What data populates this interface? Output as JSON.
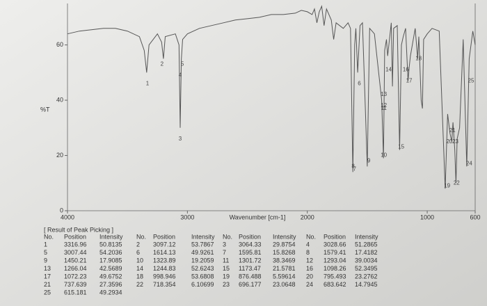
{
  "chart_data": {
    "type": "line",
    "xlabel": "Wavenumber [cm-1]",
    "ylabel": "%T",
    "xlim": [
      4000,
      600
    ],
    "ylim": [
      0,
      75
    ],
    "xticks": [
      4000,
      3000,
      2000,
      1000,
      600
    ],
    "yticks": [
      0,
      20,
      40,
      60
    ],
    "color": "#555555",
    "x": [
      4000,
      3900,
      3800,
      3700,
      3600,
      3500,
      3400,
      3360,
      3340,
      3320,
      3250,
      3215,
      3200,
      3185,
      3100,
      3070,
      3060,
      3050,
      3040,
      3000,
      2900,
      2800,
      2700,
      2600,
      2500,
      2400,
      2300,
      2200,
      2100,
      2050,
      2000,
      1960,
      1940,
      1920,
      1900,
      1880,
      1860,
      1840,
      1800,
      1780,
      1760,
      1700,
      1660,
      1640,
      1620,
      1605,
      1595,
      1580,
      1560,
      1540,
      1500,
      1480,
      1460,
      1440,
      1380,
      1365,
      1355,
      1340,
      1330,
      1315,
      1300,
      1290,
      1280,
      1250,
      1230,
      1215,
      1200,
      1180,
      1160,
      1150,
      1140,
      1100,
      1080,
      1070,
      1050,
      1040,
      1030,
      1000,
      960,
      900,
      850,
      830,
      810,
      795,
      785,
      770,
      760,
      750,
      730,
      700,
      670,
      650,
      620,
      600
    ],
    "values": [
      64,
      65,
      65.5,
      66,
      66,
      65,
      63,
      58,
      50,
      60,
      64,
      61,
      55,
      63,
      64,
      60,
      30,
      55,
      62,
      64,
      66,
      67,
      68,
      69,
      69.5,
      70,
      71,
      71,
      71.5,
      72.5,
      72,
      71,
      73,
      68,
      72,
      74,
      67,
      73,
      69,
      62,
      68,
      66,
      68,
      66,
      14,
      60,
      66,
      50,
      67,
      68,
      16,
      66,
      65,
      64,
      40,
      19,
      58,
      62,
      56,
      62,
      68,
      45,
      66,
      67,
      22,
      60,
      63,
      66,
      47,
      52,
      56,
      66,
      55,
      63,
      40,
      37,
      62,
      64,
      66,
      65,
      8,
      35,
      28,
      25,
      32,
      22,
      10,
      26,
      30,
      62,
      16,
      55,
      65,
      60
    ],
    "annotations": [
      {
        "text": "1",
        "x": 3333,
        "y": 46
      },
      {
        "text": "2",
        "x": 3212,
        "y": 53
      },
      {
        "text": "5",
        "x": 3042,
        "y": 53
      },
      {
        "text": "4",
        "x": 3060,
        "y": 49
      },
      {
        "text": "3",
        "x": 3060,
        "y": 26
      },
      {
        "text": "6",
        "x": 1566,
        "y": 46
      },
      {
        "text": "14",
        "x": 1322,
        "y": 51
      },
      {
        "text": "16",
        "x": 1178,
        "y": 51
      },
      {
        "text": "18",
        "x": 1072,
        "y": 55
      },
      {
        "text": "17",
        "x": 1151,
        "y": 47
      },
      {
        "text": "25",
        "x": 635,
        "y": 47
      },
      {
        "text": "13",
        "x": 1362,
        "y": 42
      },
      {
        "text": "12",
        "x": 1362,
        "y": 38
      },
      {
        "text": "11",
        "x": 1362,
        "y": 37
      },
      {
        "text": "21",
        "x": 790,
        "y": 29
      },
      {
        "text": "20",
        "x": 815,
        "y": 25
      },
      {
        "text": "23",
        "x": 765,
        "y": 25
      },
      {
        "text": "15",
        "x": 1217,
        "y": 23
      },
      {
        "text": "10",
        "x": 1362,
        "y": 20
      },
      {
        "text": "9",
        "x": 1487,
        "y": 18
      },
      {
        "text": "8",
        "x": 1618,
        "y": 16
      },
      {
        "text": "7",
        "x": 1605,
        "y": 15
      },
      {
        "text": "24",
        "x": 650,
        "y": 17
      },
      {
        "text": "19",
        "x": 834,
        "y": 9
      },
      {
        "text": "22",
        "x": 755,
        "y": 10
      }
    ]
  },
  "table": {
    "title": "[ Result of Peak Picking ]",
    "columns": [
      "No.",
      "Position",
      "Intensity"
    ],
    "rows": [
      [
        1,
        3316.96,
        50.8135
      ],
      [
        2,
        3097.12,
        53.7867
      ],
      [
        3,
        3064.33,
        29.8754
      ],
      [
        4,
        3028.66,
        51.2865
      ],
      [
        5,
        3007.44,
        54.2036
      ],
      [
        6,
        1614.13,
        49.9261
      ],
      [
        7,
        1595.81,
        15.8268
      ],
      [
        8,
        1579.41,
        17.4182
      ],
      [
        9,
        1450.21,
        17.9085
      ],
      [
        10,
        1323.89,
        19.2059
      ],
      [
        11,
        1301.72,
        38.3469
      ],
      [
        12,
        1293.04,
        39.0034
      ],
      [
        13,
        1266.04,
        42.5689
      ],
      [
        14,
        1244.83,
        52.6243
      ],
      [
        15,
        1173.47,
        21.5781
      ],
      [
        16,
        1098.26,
        52.3495
      ],
      [
        17,
        1072.23,
        49.6752
      ],
      [
        18,
        998.946,
        53.6808
      ],
      [
        19,
        876.488,
        5.59614
      ],
      [
        20,
        795.493,
        23.2762
      ],
      [
        21,
        737.639,
        27.3596
      ],
      [
        22,
        718.354,
        6.10699
      ],
      [
        23,
        696.177,
        23.0648
      ],
      [
        24,
        683.642,
        14.7945
      ],
      [
        25,
        615.181,
        49.2934
      ]
    ]
  }
}
